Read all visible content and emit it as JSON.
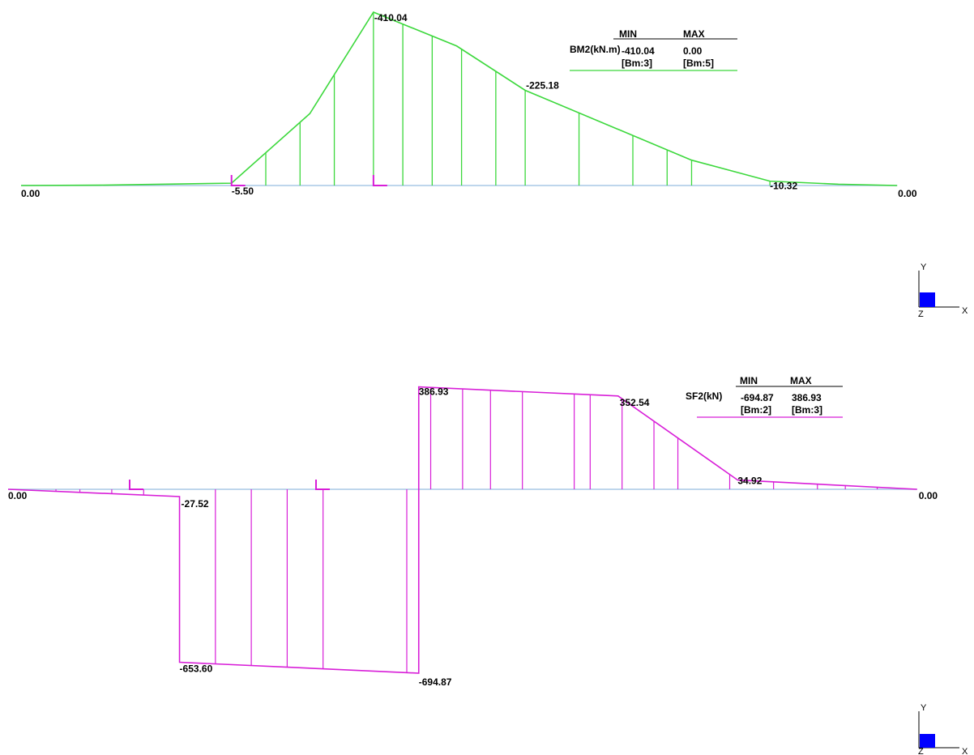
{
  "colors": {
    "moment": "#3cd83c",
    "shear": "#d81ed8",
    "baseline": "#a8c8e6",
    "support": "#d81ed8",
    "axis_box": "#0000ff"
  },
  "chart_data": [
    {
      "type": "area",
      "quantity": "BM2(kN.m)",
      "x": [
        0,
        1.6,
        4.3,
        5.9,
        7.2,
        8.9,
        10.3,
        13.7,
        15.3,
        16.7,
        17.9
      ],
      "y": [
        0,
        -0.8,
        -5.5,
        -170,
        -410.04,
        -330,
        -225.18,
        -60,
        -10.32,
        -3,
        0
      ],
      "labels": [
        {
          "text": "-410.04",
          "x": 7.2,
          "y": -410.04
        },
        {
          "text": "-225.18",
          "x": 10.3,
          "y": -225.18
        },
        {
          "text": "0.00",
          "x": 0,
          "y": 0
        },
        {
          "text": "-5.50",
          "x": 4.3,
          "y": -5.5
        },
        {
          "text": "-10.32",
          "x": 15.3,
          "y": -10.32
        },
        {
          "text": "0.00",
          "x": 17.9,
          "y": 0
        }
      ],
      "legend": {
        "headers": [
          "MIN",
          "MAX"
        ],
        "label": "BM2(kN.m)",
        "values": [
          "-410.04",
          "0.00"
        ],
        "beams": [
          "[Bm:3]",
          "[Bm:5]"
        ]
      }
    },
    {
      "type": "area",
      "quantity": "SF2(kN)",
      "segments": [
        {
          "x": [
            0,
            4.3
          ],
          "y": [
            0,
            -27.52
          ]
        },
        {
          "x": [
            4.3,
            10.3
          ],
          "y": [
            -653.6,
            -694.87
          ]
        },
        {
          "x": [
            10.3,
            15.3,
            18.3
          ],
          "y": [
            386.93,
            352.54,
            34.92
          ]
        },
        {
          "x": [
            18.3,
            22.8
          ],
          "y": [
            34.92,
            0
          ]
        }
      ],
      "labels": [
        {
          "text": "386.93",
          "x": 10.3,
          "y": 386.93
        },
        {
          "text": "352.54",
          "x": 15.3,
          "y": 352.54
        },
        {
          "text": "0.00",
          "x": 0,
          "y": 0
        },
        {
          "text": "-27.52",
          "x": 4.3,
          "y": -27.52
        },
        {
          "text": "34.92",
          "x": 18.3,
          "y": 34.92
        },
        {
          "text": "0.00",
          "x": 22.8,
          "y": 0
        },
        {
          "text": "-653.60",
          "x": 4.3,
          "y": -653.6
        },
        {
          "text": "-694.87",
          "x": 10.3,
          "y": -694.87
        }
      ],
      "legend": {
        "headers": [
          "MIN",
          "MAX"
        ],
        "label": "SF2(kN)",
        "values": [
          "-694.87",
          "386.93"
        ],
        "beams": [
          "[Bm:2]",
          "[Bm:3]"
        ]
      }
    }
  ],
  "axes_triad": {
    "y": "Y",
    "x": "X",
    "z": "Z"
  }
}
